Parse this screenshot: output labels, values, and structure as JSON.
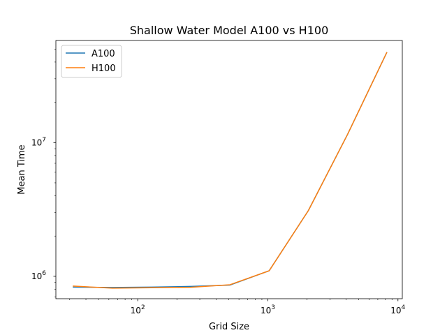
{
  "chart_data": {
    "type": "line",
    "title": "Shallow Water Model A100 vs H100",
    "xlabel": "Grid Size",
    "ylabel": "Mean Time",
    "xscale": "log",
    "yscale": "log",
    "xlim": [
      23.5,
      10800
    ],
    "ylim": [
      680000,
      58000000
    ],
    "x_ticks": [
      {
        "value": 100,
        "base": "10",
        "exp": "2"
      },
      {
        "value": 1000,
        "base": "10",
        "exp": "3"
      },
      {
        "value": 10000,
        "base": "10",
        "exp": "4"
      }
    ],
    "y_ticks": [
      {
        "value": 1000000,
        "base": "10",
        "exp": "6"
      },
      {
        "value": 10000000,
        "base": "10",
        "exp": "7"
      }
    ],
    "x": [
      32,
      64,
      128,
      256,
      512,
      1024,
      2048,
      4096,
      8192
    ],
    "series": [
      {
        "name": "A100",
        "color": "#1f77b4",
        "values": [
          830000,
          825000,
          830000,
          840000,
          860000,
          1100000,
          3100000,
          11500000,
          47000000
        ]
      },
      {
        "name": "H100",
        "color": "#ff7f0e",
        "values": [
          845000,
          815000,
          822000,
          828000,
          865000,
          1100000,
          3100000,
          11500000,
          47000000
        ]
      }
    ],
    "legend": "upper-left",
    "grid": false
  }
}
